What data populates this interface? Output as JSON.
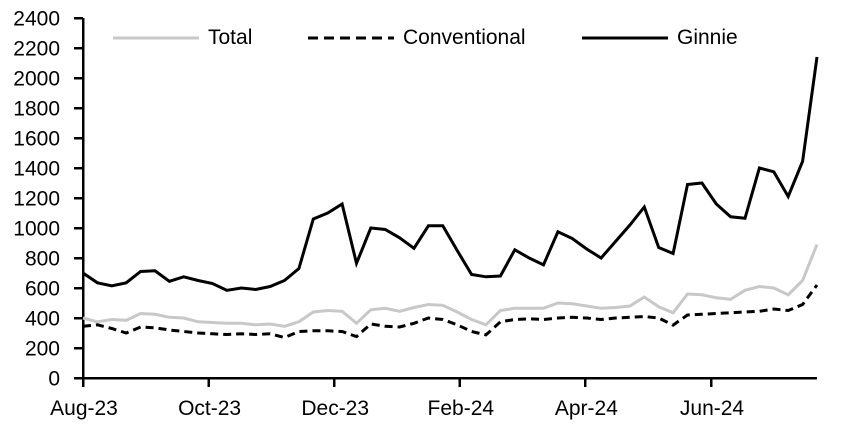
{
  "legend": [
    {
      "label": "Total",
      "color": "#c8c8c8",
      "dash": "",
      "width": 3
    },
    {
      "label": "Conventional",
      "color": "#000000",
      "dash": "10 6",
      "width": 3
    },
    {
      "label": "Ginnie",
      "color": "#000000",
      "dash": "",
      "width": 3
    }
  ],
  "chart_data": {
    "type": "line",
    "title": "",
    "xlabel": "",
    "ylabel": "",
    "x_tick_labels": [
      "Aug-23",
      "Oct-23",
      "Dec-23",
      "Feb-24",
      "Apr-24",
      "Jun-24"
    ],
    "y_tick_labels": [
      "0",
      "200",
      "400",
      "600",
      "800",
      "1000",
      "1200",
      "1400",
      "1600",
      "1800",
      "2000",
      "2200",
      "2400"
    ],
    "ylim": [
      0,
      2400
    ],
    "y_tick_step": 200,
    "grid": false,
    "legend_position": "top",
    "series": [
      {
        "name": "Total",
        "style": "solid-gray",
        "values": [
          400,
          375,
          390,
          385,
          430,
          425,
          405,
          400,
          375,
          370,
          365,
          365,
          355,
          360,
          345,
          375,
          440,
          450,
          445,
          365,
          455,
          465,
          445,
          470,
          490,
          485,
          440,
          390,
          355,
          450,
          465,
          465,
          465,
          500,
          495,
          480,
          465,
          470,
          480,
          540,
          475,
          435,
          560,
          555,
          535,
          525,
          585,
          610,
          600,
          555,
          650,
          890
        ]
      },
      {
        "name": "Conventional",
        "style": "dashed-black",
        "values": [
          345,
          355,
          330,
          300,
          340,
          335,
          320,
          310,
          300,
          295,
          290,
          295,
          290,
          295,
          270,
          310,
          315,
          315,
          310,
          276,
          360,
          345,
          340,
          365,
          400,
          390,
          355,
          310,
          287,
          375,
          390,
          395,
          390,
          400,
          405,
          400,
          390,
          400,
          405,
          410,
          400,
          353,
          420,
          425,
          430,
          435,
          440,
          445,
          460,
          450,
          490,
          620
        ]
      },
      {
        "name": "Ginnie",
        "style": "solid-black",
        "values": [
          700,
          635,
          615,
          635,
          710,
          715,
          645,
          675,
          650,
          630,
          585,
          600,
          590,
          610,
          650,
          730,
          1060,
          1100,
          1160,
          765,
          1000,
          990,
          935,
          865,
          1015,
          1015,
          850,
          690,
          675,
          680,
          855,
          800,
          755,
          975,
          930,
          860,
          800,
          910,
          1020,
          1140,
          870,
          830,
          1290,
          1300,
          1160,
          1075,
          1065,
          1400,
          1375,
          1210,
          1445,
          2140
        ]
      }
    ]
  }
}
